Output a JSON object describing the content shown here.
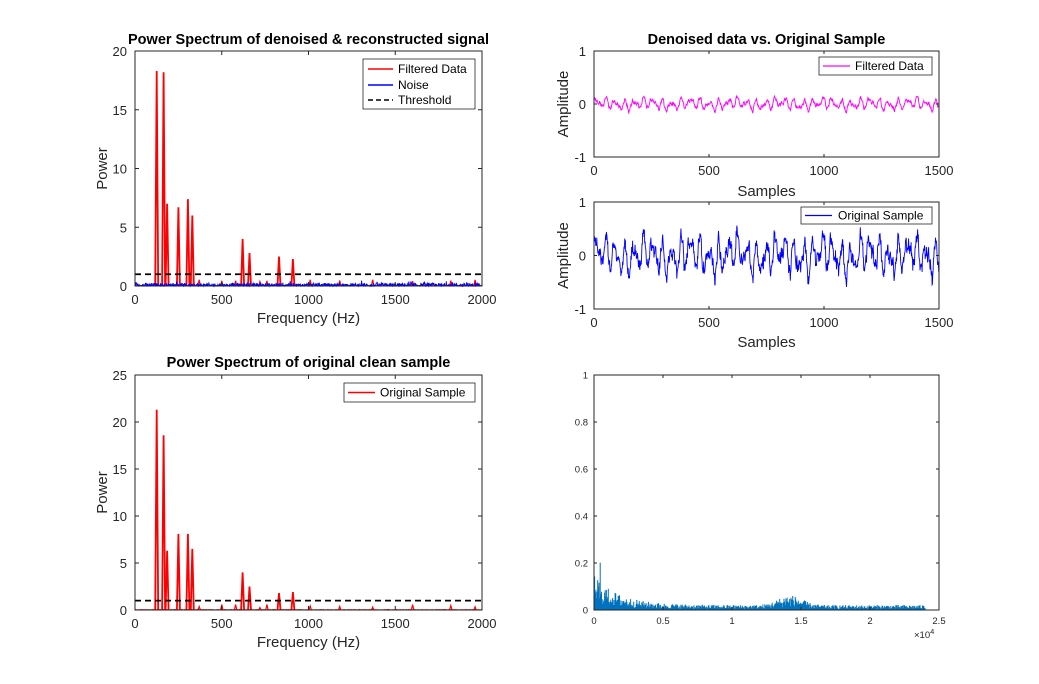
{
  "chart_data": [
    {
      "id": "p1",
      "type": "line",
      "title": "Power Spectrum of denoised & reconstructed signal",
      "xlabel": "Frequency (Hz)",
      "ylabel": "Power",
      "xlim": [
        0,
        2000
      ],
      "ylim": [
        0,
        20
      ],
      "xticks": [
        0,
        500,
        1000,
        1500,
        2000
      ],
      "yticks": [
        0,
        5,
        10,
        15,
        20
      ],
      "legend_position": "top-right",
      "series": [
        {
          "name": "Filtered Data",
          "color": "#ff0000",
          "kind": "spikes",
          "x": [
            125,
            165,
            185,
            250,
            305,
            330,
            620,
            660,
            830,
            910
          ],
          "y": [
            18.3,
            18.2,
            7.0,
            6.7,
            7.4,
            6.0,
            4.0,
            2.8,
            2.5,
            2.3
          ]
        },
        {
          "name": "Noise",
          "color": "#0000ff",
          "kind": "noise",
          "level": 0.25
        },
        {
          "name": "Threshold",
          "color": "#000000",
          "kind": "hline",
          "y": 1.0
        }
      ]
    },
    {
      "id": "p2",
      "type": "line",
      "title": "Denoised data vs. Original Sample",
      "xlabel": "Samples",
      "ylabel": "Amplitude",
      "xlim": [
        0,
        1500
      ],
      "ylim": [
        -1,
        1
      ],
      "xticks": [
        0,
        500,
        1000,
        1500
      ],
      "yticks": [
        -1,
        0,
        1
      ],
      "legend_position": "top-right",
      "series": [
        {
          "name": "Filtered Data",
          "color": "#ff00ff",
          "kind": "wave",
          "amplitude": 0.13
        }
      ]
    },
    {
      "id": "p3",
      "type": "line",
      "title": "",
      "xlabel": "Samples",
      "ylabel": "Amplitude",
      "xlim": [
        0,
        1500
      ],
      "ylim": [
        -1,
        1
      ],
      "xticks": [
        0,
        500,
        1000,
        1500
      ],
      "yticks": [
        -1,
        0,
        1
      ],
      "legend_position": "top-right",
      "series": [
        {
          "name": "Original Sample",
          "color": "#0000ff",
          "kind": "wave",
          "amplitude": 0.4
        }
      ]
    },
    {
      "id": "p4",
      "type": "line",
      "title": "Power Spectrum of original clean sample",
      "xlabel": "Frequency (Hz)",
      "ylabel": "Power",
      "xlim": [
        0,
        2000
      ],
      "ylim": [
        0,
        25
      ],
      "xticks": [
        0,
        500,
        1000,
        1500,
        2000
      ],
      "yticks": [
        0,
        5,
        10,
        15,
        20,
        25
      ],
      "legend_position": "top-right",
      "series": [
        {
          "name": "Original Sample",
          "color": "#ff0000",
          "kind": "spikes",
          "x": [
            125,
            165,
            185,
            250,
            305,
            330,
            620,
            660,
            830,
            910
          ],
          "y": [
            21.3,
            18.6,
            6.3,
            8.1,
            8.1,
            6.5,
            4.0,
            2.5,
            1.8,
            1.9
          ]
        },
        {
          "name": "",
          "color": "#000000",
          "kind": "hline",
          "y": 1.0
        }
      ]
    },
    {
      "id": "p5",
      "type": "bar",
      "title": "",
      "xlabel": "",
      "ylabel": "",
      "xlim": [
        0,
        25000
      ],
      "ylim": [
        0,
        1
      ],
      "xticks": [
        0,
        5000,
        10000,
        15000,
        20000,
        25000
      ],
      "xtick_labels": [
        "0",
        "0.5",
        "1",
        "1.5",
        "2",
        "2.5"
      ],
      "x_exponent_label": "×10",
      "x_exponent_power": "4",
      "yticks": [
        0,
        0.2,
        0.4,
        0.6,
        0.8,
        1
      ],
      "yticks_labels": [
        "0",
        "0.2",
        "0.4",
        "0.6",
        "0.8",
        "1"
      ],
      "series": [
        {
          "name": "",
          "color": "#0072bd",
          "kind": "spectrum"
        }
      ]
    }
  ]
}
